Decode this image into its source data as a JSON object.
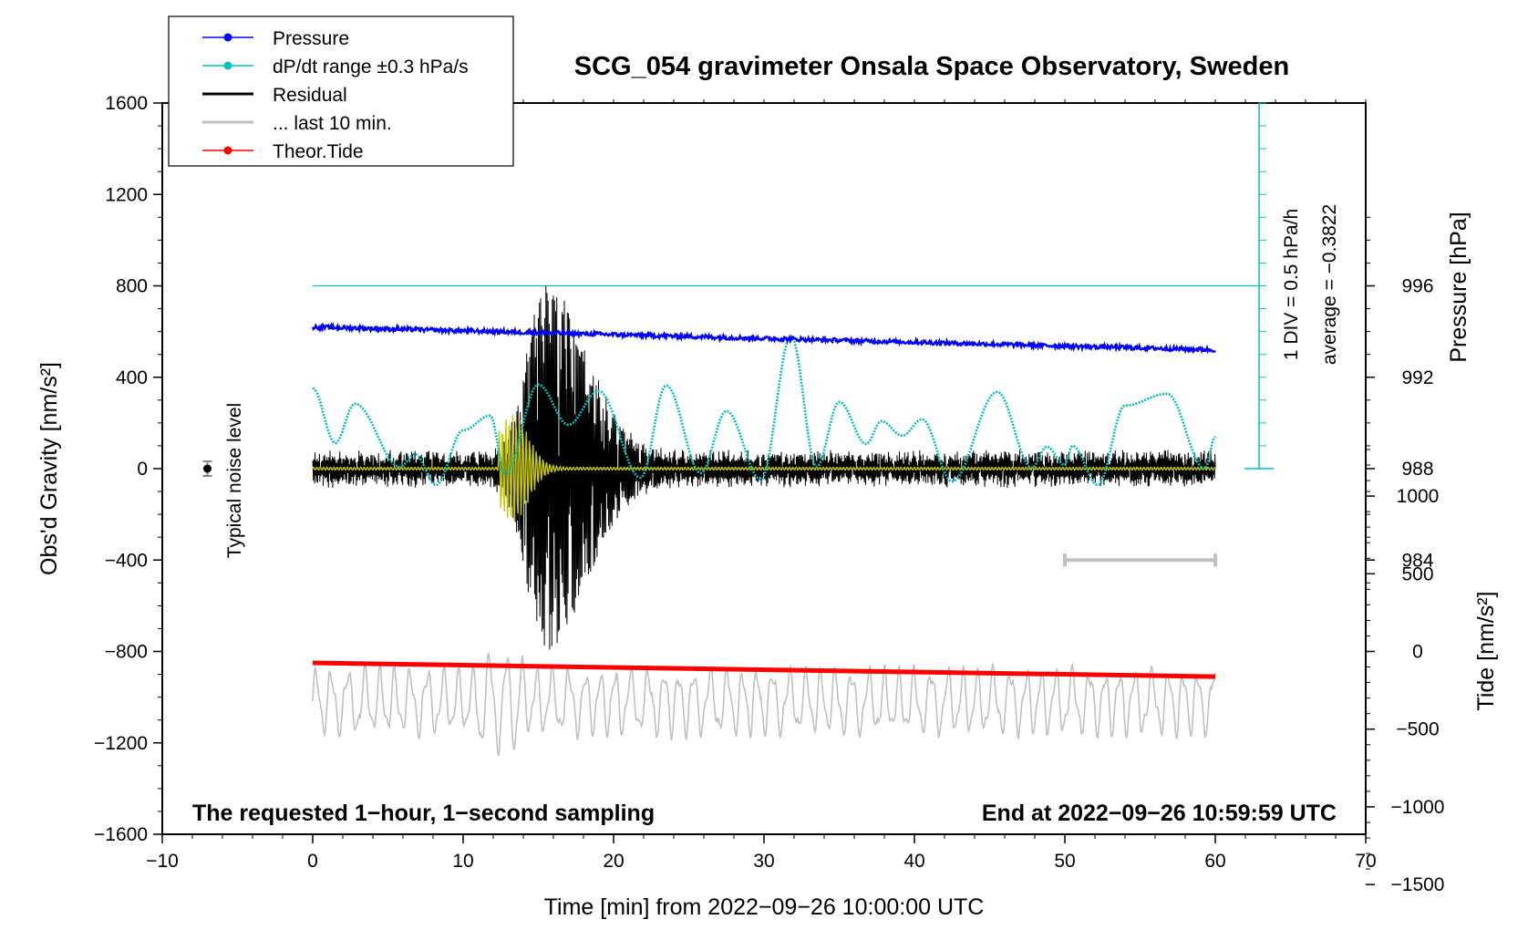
{
  "chart_data": {
    "type": "line",
    "title": "SCG_054 gravimeter Onsala Space Observatory, Sweden",
    "xlabel": "Time [min] from 2022−09−26 10:00:00 UTC",
    "ylabel_left": "Obs'd Gravity [nm/s²]",
    "ylabel_right_top": "Pressure [hPa]",
    "ylabel_right_bottom": "Tide [nm/s²]",
    "xlim": [
      -10,
      70
    ],
    "ylim_left": [
      -1600,
      1600
    ],
    "ylim_pressure": [
      980,
      1000
    ],
    "ylim_tide": [
      -1500,
      1500
    ],
    "xticks": [
      "−10",
      "0",
      "10",
      "20",
      "30",
      "40",
      "50",
      "60",
      "70"
    ],
    "yticks_left": [
      "1600",
      "1200",
      "800",
      "400",
      "0",
      "−400",
      "−800",
      "−1200",
      "−1600"
    ],
    "yticks_pressure": [
      "996",
      "992",
      "988",
      "984"
    ],
    "yticks_tide": [
      "1000",
      "500",
      "0",
      "−500",
      "−1000",
      "−1500"
    ],
    "pressure_scale_label": "1 DIV = 0.5 hPa/h",
    "average_label": "average = −0.3822",
    "noise_label": "Typical noise level",
    "note_left": "The requested 1−hour, 1−second sampling",
    "note_right": "End at 2022−09−26 10:59:59 UTC",
    "legend": {
      "placement": "top-left",
      "items": [
        {
          "label": "Pressure",
          "color": "#0000ff",
          "marker": true
        },
        {
          "label": "dP/dt range ±0.3 hPa/s",
          "color": "#00c0c0",
          "marker": true
        },
        {
          "label": "Residual",
          "color": "#000000",
          "marker": false
        },
        {
          "label": "... last 10 min.",
          "color": "#c0c0c0",
          "marker": false
        },
        {
          "label": "Theor.Tide",
          "color": "#ff0000",
          "marker": true
        }
      ]
    },
    "series": [
      {
        "name": "Pressure",
        "unit": "hPa",
        "color": "#0000ff",
        "start": 994.2,
        "end": 993.2
      },
      {
        "name": "dP/dt range ±0.3 hPa/s",
        "unit": "hPa/h",
        "color": "#00c0c0",
        "x": [
          0,
          1.5,
          2.8,
          5.8,
          6.8,
          8.2,
          10.0,
          11.8,
          12.8,
          15.0,
          17.0,
          19.0,
          21.8,
          23.5,
          25.8,
          27.5,
          29.8,
          31.8,
          33.5,
          35.0,
          36.8,
          37.8,
          39.2,
          40.5,
          42.5,
          45.5,
          47.8,
          48.8,
          50.0,
          50.5,
          52.2,
          54.0,
          56.8,
          59.3,
          60.0
        ],
        "y": [
          0.88,
          0.28,
          0.71,
          0.02,
          0.16,
          -0.18,
          0.42,
          0.58,
          -0.06,
          0.92,
          0.48,
          0.85,
          -0.1,
          0.91,
          -0.05,
          0.63,
          -0.12,
          1.45,
          0.02,
          0.73,
          0.27,
          0.52,
          0.36,
          0.54,
          -0.14,
          0.84,
          0.01,
          0.24,
          0.04,
          0.25,
          -0.18,
          0.69,
          0.82,
          0.0,
          0.35
        ]
      },
      {
        "name": "Residual",
        "unit": "nm/s²",
        "color": "#000000"
      },
      {
        "name": "... last 10 min.",
        "unit": "nm/s²",
        "color": "#c0c0c0"
      },
      {
        "name": "Theor.Tide",
        "unit": "nm/s²",
        "color": "#ff0000",
        "start": -850,
        "end": -910
      }
    ],
    "seismic_envelope": {
      "onset_min": 12.0,
      "peak_min": 15.5,
      "peak_amplitude": 730,
      "background_amplitude": 60
    },
    "average_line_value": 800,
    "noise_level_x": -7,
    "colors": {
      "pressure": "#0000ff",
      "dpdt": "#00c0c0",
      "residual": "#000000",
      "filtered": "#c8c800",
      "last10": "#c0c0c0",
      "tide": "#ff0000",
      "bar": "#c0c0c0"
    }
  }
}
